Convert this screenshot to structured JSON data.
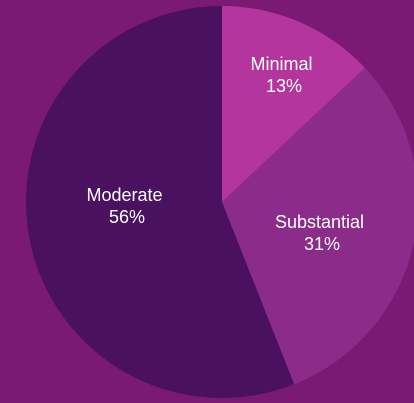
{
  "chart_data": {
    "type": "pie",
    "start_angle_deg": 0,
    "direction": "clockwise",
    "slices": [
      {
        "label": "Minimal",
        "value": 13,
        "value_label": "13%",
        "color": "#b5359e"
      },
      {
        "label": "Substantial",
        "value": 31,
        "value_label": "31%",
        "color": "#8c2c8a"
      },
      {
        "label": "Moderate",
        "value": 56,
        "value_label": "56%",
        "color": "#4a1160"
      }
    ]
  },
  "colors": {
    "background": "#7a1a74"
  }
}
